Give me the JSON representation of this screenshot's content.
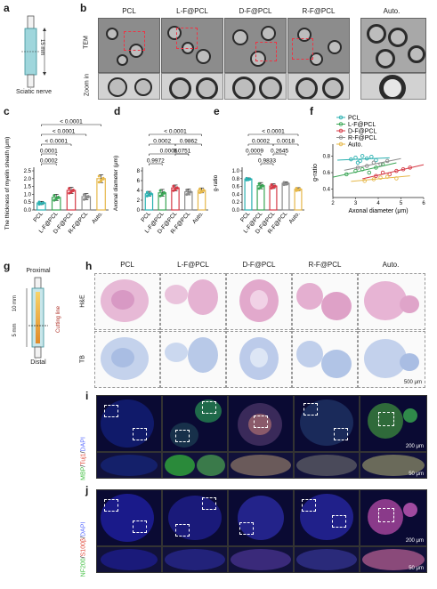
{
  "panels": {
    "a": "a",
    "b": "b",
    "c": "c",
    "d": "d",
    "e": "e",
    "f": "f",
    "g": "g",
    "h": "h",
    "i": "i",
    "j": "j"
  },
  "groups": [
    "PCL",
    "L-F@PCL",
    "D-F@PCL",
    "R-F@PCL",
    "Auto."
  ],
  "colors": {
    "PCL": "#2ab0b0",
    "L-F@PCL": "#3aa655",
    "D-F@PCL": "#d63a46",
    "R-F@PCL": "#8c8c8c",
    "Auto.": "#e6b84a"
  },
  "panel_a": {
    "length": "15 mm",
    "caption": "Sciatic nerve"
  },
  "panel_b": {
    "row1": "TEM",
    "row2": "Zoom in"
  },
  "panel_g": {
    "top": "Proximal",
    "bottom": "Distal",
    "len1": "10 mm",
    "len2": "5 mm",
    "cut": "Cutting line"
  },
  "panel_h": {
    "row1": "H&E",
    "row2": "TB",
    "scale": "500 μm"
  },
  "panel_i": {
    "stain_parts": [
      "MBP",
      "/",
      "Tuj1",
      "/",
      "DAPI"
    ],
    "scale_top": "200 μm",
    "scale_bottom": "50 μm"
  },
  "panel_j": {
    "stain_parts": [
      "NF200",
      "/",
      "S100β",
      "/",
      "DAPI"
    ],
    "scale_top": "200 μm",
    "scale_bottom": "50 μm"
  },
  "chart_data": [
    {
      "panel": "c",
      "type": "bar",
      "ylabel": "The thickness of myelin sheath (μm)",
      "categories": [
        "PCL",
        "L-F@PCL",
        "D-F@PCL",
        "R-F@PCL",
        "Auto."
      ],
      "values": [
        0.45,
        0.8,
        1.25,
        0.85,
        2.0
      ],
      "errors": [
        0.1,
        0.2,
        0.2,
        0.2,
        0.25
      ],
      "ylim": [
        0,
        2.5
      ],
      "yticks": [
        0.0,
        0.5,
        1.0,
        1.5,
        2.0,
        2.5
      ],
      "annotations": [
        "< 0.0001",
        "< 0.0001",
        "< 0.0001",
        "0.0001",
        "0.0002"
      ]
    },
    {
      "panel": "d",
      "type": "bar",
      "ylabel": "Axonal diameter (μm)",
      "categories": [
        "PCL",
        "L-F@PCL",
        "D-F@PCL",
        "R-F@PCL",
        "Auto."
      ],
      "values": [
        3.3,
        3.5,
        4.5,
        3.7,
        4.0
      ],
      "errors": [
        0.5,
        0.7,
        0.6,
        0.6,
        0.5
      ],
      "ylim": [
        0,
        8
      ],
      "yticks": [
        0,
        2,
        4,
        6,
        8
      ],
      "annotations": [
        "< 0.0001",
        "0.0002",
        "0.9862",
        "0.0006",
        "0.0751",
        "0.9972"
      ]
    },
    {
      "panel": "e",
      "type": "bar",
      "ylabel": "g-ratio",
      "categories": [
        "PCL",
        "L-F@PCL",
        "D-F@PCL",
        "R-F@PCL",
        "Auto."
      ],
      "values": [
        0.79,
        0.62,
        0.61,
        0.68,
        0.53
      ],
      "errors": [
        0.03,
        0.08,
        0.06,
        0.04,
        0.04
      ],
      "ylim": [
        0,
        1.0
      ],
      "yticks": [
        0.0,
        0.2,
        0.4,
        0.6,
        0.8,
        1.0
      ],
      "annotations": [
        "< 0.0001",
        "0.0002",
        "0.0018",
        "0.0009",
        "0.2645",
        "0.9833"
      ]
    },
    {
      "panel": "f",
      "type": "scatter",
      "xlabel": "Axonal diameter (μm)",
      "ylabel": "g-ratio",
      "xlim": [
        2,
        6
      ],
      "ylim": [
        0.3,
        0.9
      ],
      "xticks": [
        2,
        3,
        4,
        5,
        6
      ],
      "yticks": [
        0.4,
        0.6,
        0.8
      ],
      "series": [
        {
          "name": "PCL",
          "x": [
            2.8,
            3.0,
            3.2,
            3.3,
            3.5,
            3.7,
            3.9,
            3.1
          ],
          "y": [
            0.76,
            0.78,
            0.74,
            0.8,
            0.77,
            0.79,
            0.75,
            0.72
          ]
        },
        {
          "name": "L-F@PCL",
          "x": [
            2.6,
            3.0,
            3.3,
            3.6,
            3.9,
            4.2
          ],
          "y": [
            0.58,
            0.62,
            0.64,
            0.6,
            0.66,
            0.7
          ]
        },
        {
          "name": "D-F@PCL",
          "x": [
            3.9,
            4.2,
            4.5,
            4.8,
            5.1,
            5.4
          ],
          "y": [
            0.56,
            0.6,
            0.58,
            0.62,
            0.64,
            0.66
          ]
        },
        {
          "name": "R-F@PCL",
          "x": [
            3.1,
            3.5,
            3.8,
            4.1,
            4.4
          ],
          "y": [
            0.66,
            0.68,
            0.72,
            0.7,
            0.74
          ]
        },
        {
          "name": "Auto.",
          "x": [
            3.4,
            3.8,
            4.1,
            4.4,
            4.8
          ],
          "y": [
            0.5,
            0.52,
            0.54,
            0.55,
            0.53
          ]
        }
      ]
    }
  ]
}
